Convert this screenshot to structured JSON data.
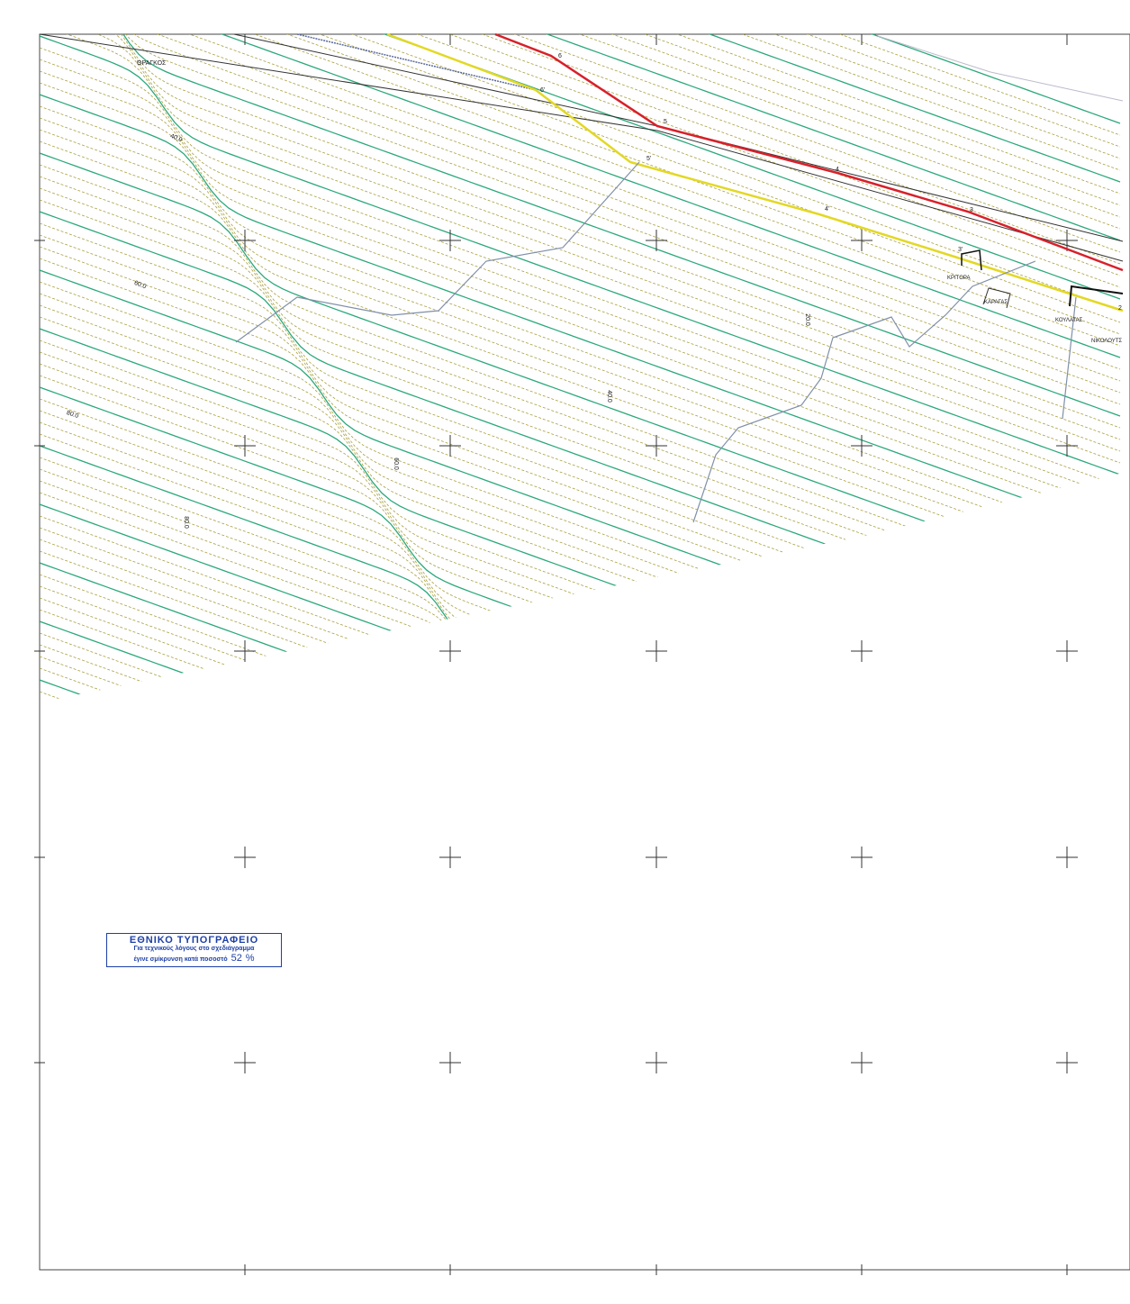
{
  "map": {
    "place_label": "ΘΡΑΓΚΟΣ",
    "contour_labels": [
      "40.0",
      "60.0",
      "80.0",
      "20.0",
      "40.0",
      "60.0",
      "80.0"
    ],
    "point_labels": [
      "6",
      "5",
      "4",
      "3",
      "2",
      "6'",
      "5'",
      "4'",
      "3'"
    ],
    "owner_labels": [
      "ΚΡΙΤΟΡΑ",
      "ΚΑΡΑΓΑΣ",
      "ΚΟΥΛΑΤΑΣ",
      "ΝΙΚΟΛΟΥΤΣ"
    ]
  },
  "stamp": {
    "title": "ΕΘΝΙΚΟ ΤΥΠΟΓΡΑΦΕΙΟ",
    "line1": "Για τεχνικούς λόγους στο σχεδιάγραμμα",
    "line2": "έγινε σμίκρυνση κατά ποσοστό",
    "percent": "52",
    "unit": "%"
  }
}
